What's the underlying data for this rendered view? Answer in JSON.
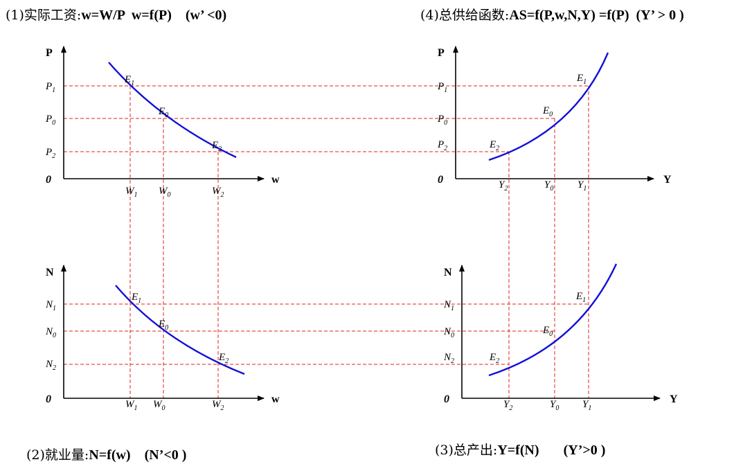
{
  "captions": {
    "c1_prefix": "(1)实际工资:",
    "c1_formula": "w=W/P  w=f(P)    (w’ <0)",
    "c4_prefix": "(4)总供给函数:",
    "c4_formula": "AS=f(P,w,N,Y) =f(P)  (Y’ > 0 )",
    "c2_prefix": "(2)就业量:",
    "c2_formula": "N=f(w)    (N’<0 )",
    "c3_prefix": "(3)总产出:",
    "c3_formula": "Y=f(N)       (Y’>0 )"
  },
  "axes": {
    "p": "P",
    "n": "N",
    "w": "w",
    "y": "Y",
    "zero": "0"
  },
  "ticks": {
    "p1": {
      "main": "P",
      "sub": "1"
    },
    "p0": {
      "main": "P",
      "sub": "0"
    },
    "p2": {
      "main": "P",
      "sub": "2"
    },
    "n1": {
      "main": "N",
      "sub": "1"
    },
    "n0": {
      "main": "N",
      "sub": "0"
    },
    "n2": {
      "main": "N",
      "sub": "2"
    },
    "w1": {
      "main": "W",
      "sub": "1"
    },
    "w0": {
      "main": "W",
      "sub": "0"
    },
    "w2": {
      "main": "W",
      "sub": "2"
    },
    "y2": {
      "main": "Y",
      "sub": "2"
    },
    "y0": {
      "main": "Y",
      "sub": "0"
    },
    "y1": {
      "main": "Y",
      "sub": "1"
    }
  },
  "points": {
    "e1": {
      "main": "E",
      "sub": "1"
    },
    "e0": {
      "main": "E",
      "sub": "0"
    },
    "e2": {
      "main": "E",
      "sub": "2"
    }
  },
  "colors": {
    "curve": "#1010d8",
    "guide": "#e0201c",
    "axis": "#000000"
  }
}
